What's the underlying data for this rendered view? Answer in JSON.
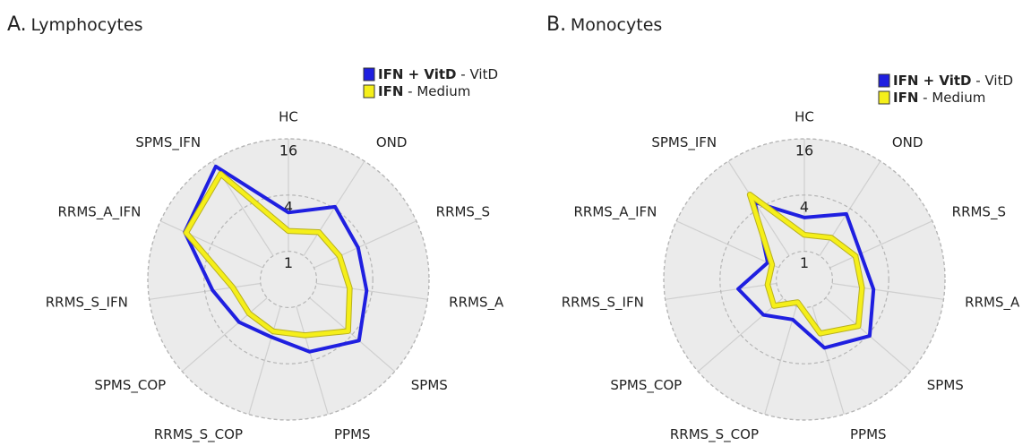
{
  "chart_data": [
    {
      "type": "radar",
      "panel": "A.",
      "title": "Lymphocytes",
      "categories": [
        "HC",
        "OND",
        "RRMS_S",
        "RRMS_A",
        "SPMS",
        "PPMS",
        "RRMS_S_COP",
        "SPMS_COP",
        "RRMS_S_IFN",
        "RRMS_A_IFN",
        "SPMS_IFN"
      ],
      "log_scale": true,
      "ylim": [
        0.5,
        16
      ],
      "yticks": [
        1,
        4,
        16
      ],
      "grid": true,
      "series": [
        {
          "name": "IFN + VitD",
          "condition": "- VitD",
          "color": "#1f1fe0",
          "values": [
            2.6,
            4.2,
            3.3,
            3.5,
            5,
            3.2,
            2.2,
            2.5,
            3.3,
            8.3,
            13.7
          ]
        },
        {
          "name": "IFN",
          "condition": "- Medium",
          "color": "#f5ef1a",
          "values": [
            1.65,
            2,
            2,
            2.3,
            3.5,
            2.1,
            1.9,
            1.8,
            2,
            8,
            11
          ]
        }
      ]
    },
    {
      "type": "radar",
      "panel": "B.",
      "title": "Monocytes",
      "categories": [
        "HC",
        "OND",
        "RRMS_S",
        "RRMS_A",
        "SPMS",
        "PPMS",
        "RRMS_S_COP",
        "SPMS_COP",
        "RRMS_S_IFN",
        "RRMS_A_IFN",
        "SPMS_IFN"
      ],
      "log_scale": true,
      "ylim": [
        0.5,
        16
      ],
      "yticks": [
        1,
        4,
        16
      ],
      "grid": true,
      "series": [
        {
          "name": "IFN + VitD",
          "condition": "- VitD",
          "color": "#1f1fe0",
          "values": [
            2.3,
            3.4,
            2.3,
            2.8,
            4.2,
            2.9,
            1.4,
            1.9,
            2.6,
            1.35,
            4.8
          ]
        },
        {
          "name": "IFN",
          "condition": "- Medium",
          "color": "#f5ef1a",
          "values": [
            1.5,
            1.7,
            2,
            2.1,
            2.9,
            2,
            0.9,
            1.35,
            1.25,
            1.2,
            6
          ]
        }
      ]
    }
  ]
}
